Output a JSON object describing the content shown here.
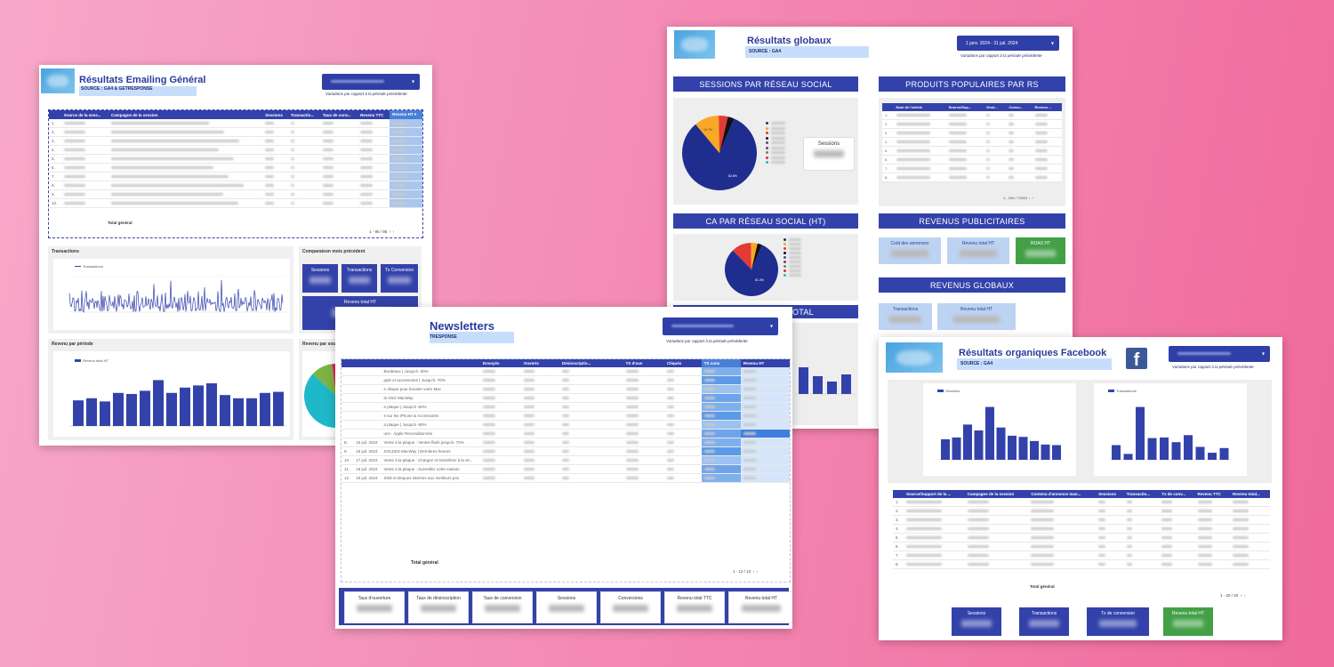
{
  "emailing": {
    "title": "Résultats Emailing Général",
    "source": "SOURCE : GA4 & GETRESPONSE",
    "note": "Variations par rapport à la période précédente",
    "table": {
      "headers": [
        "",
        "Source de la sess...",
        "Campagne de la session",
        "Sessions",
        "Transactio...",
        "Taux de conv...",
        "Revenu TTC",
        "Revenu HT ▾"
      ],
      "rows": [
        "1.",
        "2.",
        "3.",
        "4.",
        "5.",
        "6.",
        "7.",
        "8.",
        "9.",
        "10."
      ],
      "total_label": "Total général",
      "pager": "1 - 95 / 95"
    },
    "transactions_title": "Transactions",
    "transactions_legend": "Transactions",
    "comparaison_title": "Comparaison mois précédent",
    "kpis": [
      "Sessions",
      "Transactions",
      "Tx Conversion"
    ],
    "revenu_total": "Revenu total HT",
    "revenu_periode_title": "Revenu par période",
    "revenu_periode_legend": "Revenu total HT",
    "revenu_source_title": "Revenu par source",
    "pie_labels": [
      "80.6%"
    ],
    "bar_chart": {
      "values": [
        0.48,
        0.52,
        0.46,
        0.62,
        0.6,
        0.66,
        0.86,
        0.62,
        0.72,
        0.76,
        0.8,
        0.58,
        0.52,
        0.52,
        0.62,
        0.64
      ]
    },
    "source_pie": {
      "values": [
        0.806,
        0.11,
        0.04,
        0.03,
        0.014
      ]
    }
  },
  "globaux": {
    "title": "Résultats globaux",
    "source": "SOURCE : GA4",
    "date": "1 janv. 2024 - 31 juil. 2024",
    "note": "Variations par rapport à la période précédente",
    "sessions_header": "SESSIONS PAR RÉSEAU SOCIAL",
    "sessions_label": "Sessions",
    "pie1_labels": [
      "82.6%",
      "10.7%"
    ],
    "produits_header": "PRODUITS POPULAIRES PAR RS",
    "produits_cols": [
      "",
      "Nom de l'article",
      "Source/Sup...",
      "Vend...",
      "Consu...",
      "Revenu ..."
    ],
    "produits_rows": [
      "1.",
      "2.",
      "3.",
      "4.",
      "5.",
      "6.",
      "7.",
      "8."
    ],
    "produits_pager": "1 - 100 / 71913",
    "ca_header": "CA PAR RÉSEAU SOCIAL (HT)",
    "pie2_labels": [
      "81.3%"
    ],
    "pub_header": "REVENUS PUBLICITAIRES",
    "pub_kpis": [
      "Coût des annonces",
      "Revenu total HT",
      "ROAS HT"
    ],
    "globaux_header": "REVENUS GLOBAUX",
    "globaux_kpis": [
      "Transactions",
      "Revenu total HT"
    ],
    "total_strip": "TOTAL",
    "pie1": {
      "values": [
        0.826,
        0.107,
        0.04,
        0.027
      ]
    },
    "pie2": {
      "values": [
        0.813,
        0.12,
        0.04,
        0.027
      ]
    },
    "small_bars": {
      "values": [
        0.75,
        0.5,
        0.35,
        0.55
      ]
    }
  },
  "newsletters": {
    "title": "Newsletters",
    "source": "TRESPONSE",
    "note": "Variations par rapport à la période précédente",
    "cols": [
      "",
      "Envoyés",
      "Ouverts",
      "Désinscriptio...",
      "TX d'ouv",
      "Cliqués",
      "TX conv",
      "Revenu HT"
    ],
    "rows": [
      {
        "n": "",
        "date": "",
        "txt": "Bordeaux | Jusqu'à -30%"
      },
      {
        "n": "",
        "date": "",
        "txt": "pple et accessoires | Jusqu'à -70%"
      },
      {
        "n": "",
        "date": "",
        "txt": "e disque pour booster votre Mac"
      },
      {
        "n": "",
        "date": "",
        "txt": "ts chez MacWay"
      },
      {
        "n": "",
        "date": "",
        "txt": "e plaque | Jusqu'à -60%"
      },
      {
        "n": "",
        "date": "",
        "txt": "e sur les iPhone & Accessoires"
      },
      {
        "n": "",
        "date": "",
        "txt": "a plaque | Jusqu'à -60%"
      },
      {
        "n": "",
        "date": "",
        "txt": "uns : Apple Reconditionnés"
      },
      {
        "n": "8.",
        "date": "15 juil. 2024",
        "txt": "Vente à la plaque : Ventes flash jusqu'à -70%"
      },
      {
        "n": "9.",
        "date": "16 juil. 2024",
        "txt": "SOLDES MacWay | Dernières heures"
      },
      {
        "n": "10.",
        "date": "17 juil. 2024",
        "txt": "Vente à la plaque : Chargez et transférez à la vit..."
      },
      {
        "n": "11.",
        "date": "18 juil. 2024",
        "txt": "Vente à la plaque : Surveillez votre maison"
      },
      {
        "n": "12.",
        "date": "19 juil. 2024",
        "txt": "SSD et disques internes aux meilleurs prix"
      }
    ],
    "total_label": "Total général",
    "pager": "1 - 12 / 12",
    "kpis": [
      "Taux d'ouverture",
      "Taux de désinscription",
      "Taux de conversion",
      "Sessions",
      "Conversions",
      "Revenu total TTC",
      "Revenu total HT"
    ]
  },
  "facebook": {
    "title": "Résultats organiques Facebook",
    "source": "SOURCE : GA4",
    "note": "Variations par rapport à la période précédente",
    "legend1": "Sessions",
    "legend2": "Transactions",
    "cols": [
      "",
      "Source/Support de la ...",
      "Campagne de la session",
      "Contenu d'annonce man...",
      "Sessions",
      "Transactio...",
      "Tx de conv...",
      "Revenu TTC",
      "Revenu total..."
    ],
    "rows": [
      "1.",
      "2.",
      "3.",
      "4.",
      "5.",
      "6.",
      "7.",
      "8."
    ],
    "total_label": "Total général",
    "pager": "1 - 20 / 20",
    "kpis": [
      "Sessions",
      "Transactions",
      "Tx de conversion",
      "Revenu total HT"
    ],
    "bars1": {
      "values": [
        0.35,
        0.38,
        0.6,
        0.5,
        0.9,
        0.55,
        0.41,
        0.39,
        0.32,
        0.26,
        0.25
      ]
    },
    "bars2": {
      "values": [
        0.25,
        0.1,
        0.9,
        0.37,
        0.38,
        0.3,
        0.42,
        0.22,
        0.12,
        0.2
      ]
    }
  },
  "colors": {
    "primary": "#3342aa",
    "accent": "#4aa3df",
    "green": "#43a047",
    "pink_bg": "#f48fb8"
  }
}
